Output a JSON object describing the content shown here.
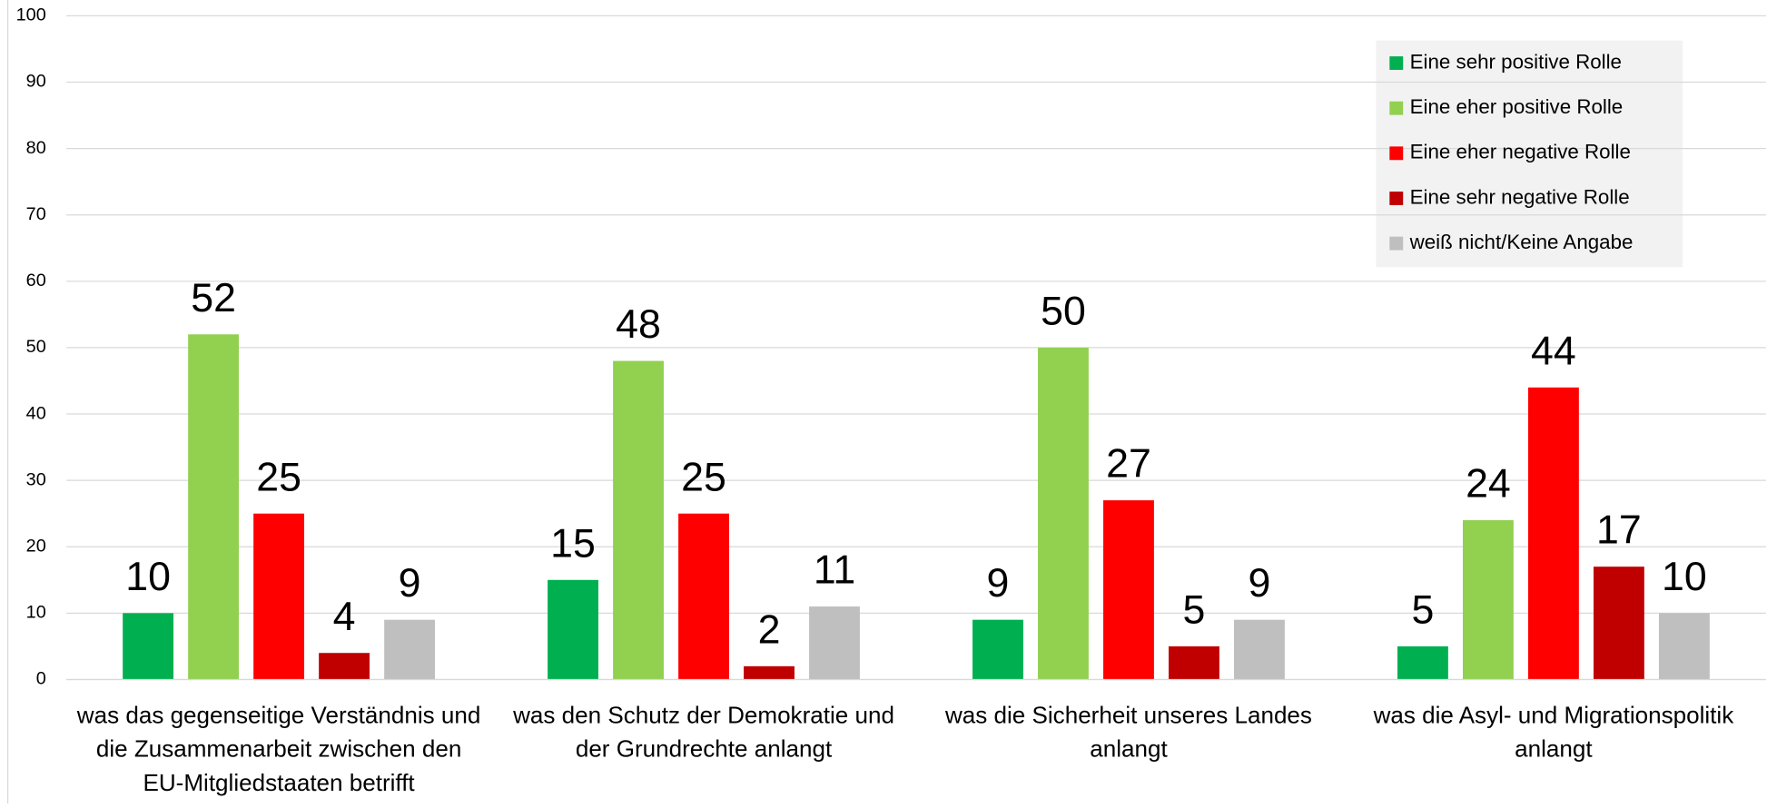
{
  "chart_data": {
    "type": "bar",
    "categories": [
      "was das gegenseitige Verständnis und die Zusammenarbeit zwischen den EU-Mitgliedstaaten betrifft",
      "was den Schutz der Demokratie und der Grundrechte anlangt",
      "was die Sicherheit unseres Landes anlangt",
      "was die Asyl- und Migrationspolitik anlangt"
    ],
    "series": [
      {
        "name": "Eine sehr positive Rolle",
        "color": "#00b050",
        "values": [
          10,
          15,
          9,
          5
        ]
      },
      {
        "name": "Eine eher positive Rolle",
        "color": "#92d050",
        "values": [
          52,
          48,
          50,
          24
        ]
      },
      {
        "name": "Eine eher negative Rolle",
        "color": "#ff0000",
        "values": [
          25,
          25,
          27,
          44
        ]
      },
      {
        "name": "Eine sehr negative Rolle",
        "color": "#c00000",
        "values": [
          4,
          2,
          5,
          17
        ]
      },
      {
        "name": "weiß nicht/Keine Angabe",
        "color": "#bfbfbf",
        "values": [
          9,
          11,
          9,
          10
        ]
      }
    ],
    "ylim": [
      0,
      100
    ],
    "yticks": [
      0,
      10,
      20,
      30,
      40,
      50,
      60,
      70,
      80,
      90,
      100
    ],
    "grid": true,
    "legend": "top-right"
  }
}
